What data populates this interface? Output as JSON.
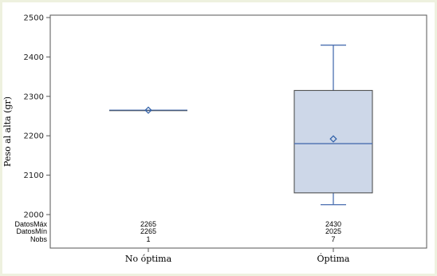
{
  "chart_data": {
    "type": "box",
    "title": "",
    "xlabel": "",
    "ylabel": "Peso al alta (gr)",
    "ylim": [
      2000,
      2500
    ],
    "yticks": [
      2000,
      2100,
      2200,
      2300,
      2400,
      2500
    ],
    "categories": [
      "No óptima",
      "Óptima"
    ],
    "boxes": [
      {
        "category": "No óptima",
        "min": 2265,
        "q1": 2265,
        "median": 2265,
        "q3": 2265,
        "max": 2265,
        "mean": 2265
      },
      {
        "category": "Óptima",
        "min": 2025,
        "q1": 2055,
        "median": 2180,
        "q3": 2315,
        "max": 2430,
        "mean": 2192
      }
    ],
    "stats_table": {
      "rows": [
        {
          "label": "DatosMáx",
          "values": [
            "2265",
            "2430"
          ]
        },
        {
          "label": "DatosMín",
          "values": [
            "2265",
            "2025"
          ]
        },
        {
          "label": "Nobs",
          "values": [
            "1",
            "7"
          ]
        }
      ]
    },
    "colors": {
      "box_fill": "#cdd7e8",
      "box_stroke": "#444444",
      "whisker": "#4a6fb0",
      "mean_marker": "#2f5fa8"
    },
    "grid": false
  }
}
